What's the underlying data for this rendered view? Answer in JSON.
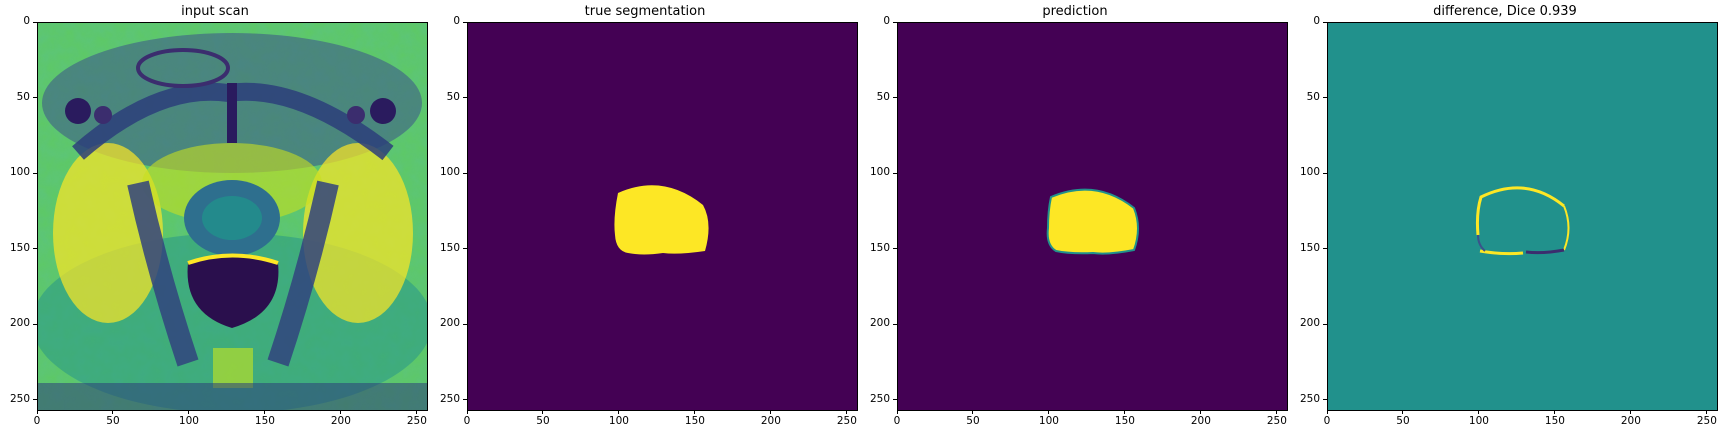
{
  "panels": [
    {
      "title": "input scan",
      "image_kind": "mri-slice"
    },
    {
      "title": "true segmentation",
      "image_kind": "binary-mask"
    },
    {
      "title": "prediction",
      "image_kind": "soft-mask"
    },
    {
      "title": "difference, Dice 0.939",
      "image_kind": "difference-map"
    }
  ],
  "axes": {
    "xlim": [
      0,
      256
    ],
    "ylim": [
      256,
      0
    ],
    "xticks": [
      0,
      50,
      100,
      150,
      200,
      250
    ],
    "yticks": [
      0,
      50,
      100,
      150,
      200,
      250
    ],
    "xtick_labels": [
      "0",
      "50",
      "100",
      "150",
      "200",
      "250"
    ],
    "ytick_labels": [
      "0",
      "50",
      "100",
      "150",
      "200",
      "250"
    ]
  },
  "colors": {
    "viridis_dark": "#440154",
    "viridis_yellow": "#fde725",
    "viridis_teal": "#21918c",
    "viridis_green": "#5ec962",
    "viridis_blue": "#3b528b"
  }
}
